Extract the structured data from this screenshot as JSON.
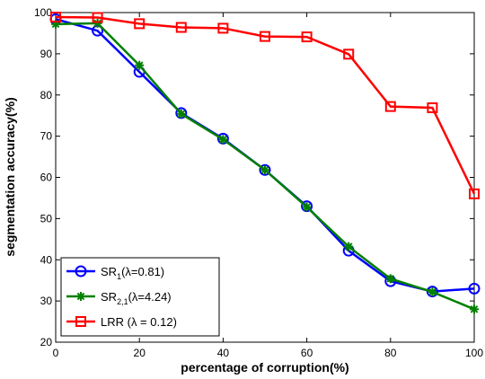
{
  "chart_data": {
    "type": "line",
    "xlabel": "percentage of corruption(%)",
    "ylabel": "segmentation accuracy(%)",
    "xlim": [
      0,
      100
    ],
    "ylim": [
      20,
      100
    ],
    "xticks": [
      0,
      20,
      40,
      60,
      80,
      100
    ],
    "yticks": [
      20,
      30,
      40,
      50,
      60,
      70,
      80,
      90,
      100
    ],
    "grid": false,
    "legend_position": "bottom-left",
    "x": [
      0,
      10,
      20,
      30,
      40,
      50,
      60,
      70,
      80,
      90,
      100
    ],
    "series": [
      {
        "legend_main": "SR",
        "legend_sub": "1",
        "legend_rest": "(λ=0.81)",
        "marker": "circle",
        "color": "#0000ff",
        "values": [
          98.4,
          95.6,
          85.6,
          75.6,
          69.4,
          61.8,
          53.0,
          42.2,
          34.8,
          32.3,
          33.0
        ]
      },
      {
        "legend_main": "SR",
        "legend_sub": "2,1",
        "legend_rest": "(λ=4.24)",
        "marker": "star",
        "color": "#008000",
        "values": [
          97.2,
          97.4,
          87.2,
          75.4,
          69.2,
          61.8,
          52.8,
          43.2,
          35.4,
          32.2,
          28.0
        ]
      },
      {
        "legend_main": "LRR (λ = 0.12)",
        "legend_sub": "",
        "legend_rest": "",
        "marker": "square",
        "color": "#ff0000",
        "values": [
          98.9,
          98.8,
          97.3,
          96.4,
          96.2,
          94.2,
          94.1,
          89.9,
          77.2,
          76.9,
          56.0
        ]
      }
    ]
  }
}
